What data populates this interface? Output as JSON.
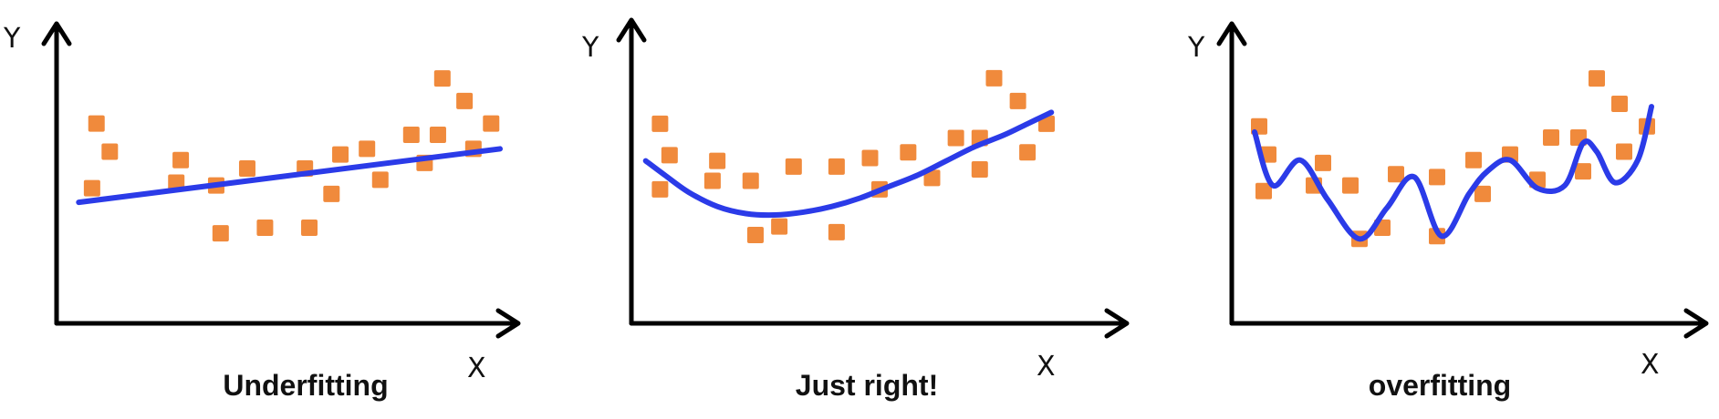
{
  "colors": {
    "points": "#f08a3c",
    "curve": "#2b3be8",
    "axes": "#000000"
  },
  "panels": [
    {
      "y_label": "Y",
      "x_label": "X",
      "caption": "Underfitting",
      "points": [
        [
          0.9,
          7.1
        ],
        [
          1.2,
          6.1
        ],
        [
          0.8,
          4.8
        ],
        [
          2.8,
          5.8
        ],
        [
          2.7,
          5.0
        ],
        [
          3.6,
          4.9
        ],
        [
          4.3,
          5.5
        ],
        [
          3.7,
          3.2
        ],
        [
          4.7,
          3.4
        ],
        [
          5.6,
          5.5
        ],
        [
          5.7,
          3.4
        ],
        [
          6.4,
          6.0
        ],
        [
          6.2,
          4.6
        ],
        [
          7.0,
          6.2
        ],
        [
          7.3,
          5.1
        ],
        [
          8.0,
          6.7
        ],
        [
          8.6,
          6.7
        ],
        [
          8.3,
          5.7
        ],
        [
          8.7,
          8.7
        ],
        [
          9.2,
          7.9
        ],
        [
          9.4,
          6.2
        ],
        [
          9.8,
          7.1
        ]
      ],
      "curve": [
        [
          0.5,
          4.3
        ],
        [
          10.0,
          6.2
        ]
      ]
    },
    {
      "y_label": "Y",
      "x_label": "X",
      "caption": "Just right!",
      "points": [
        [
          0.6,
          7.0
        ],
        [
          0.8,
          5.9
        ],
        [
          0.6,
          4.7
        ],
        [
          1.8,
          5.7
        ],
        [
          1.7,
          5.0
        ],
        [
          2.5,
          5.0
        ],
        [
          2.6,
          3.1
        ],
        [
          3.1,
          3.4
        ],
        [
          3.4,
          5.5
        ],
        [
          4.3,
          5.5
        ],
        [
          4.3,
          3.2
        ],
        [
          5.0,
          5.8
        ],
        [
          5.2,
          4.7
        ],
        [
          5.8,
          6.0
        ],
        [
          6.3,
          5.1
        ],
        [
          6.8,
          6.5
        ],
        [
          7.3,
          6.5
        ],
        [
          7.3,
          5.4
        ],
        [
          7.6,
          8.6
        ],
        [
          8.1,
          7.8
        ],
        [
          8.3,
          6.0
        ],
        [
          8.7,
          7.0
        ]
      ],
      "curve": [
        [
          0.3,
          5.7
        ],
        [
          0.7,
          5.2
        ],
        [
          1.2,
          4.6
        ],
        [
          1.8,
          4.1
        ],
        [
          2.4,
          3.85
        ],
        [
          3.0,
          3.8
        ],
        [
          3.6,
          3.9
        ],
        [
          4.2,
          4.1
        ],
        [
          4.8,
          4.4
        ],
        [
          5.4,
          4.8
        ],
        [
          6.0,
          5.2
        ],
        [
          6.6,
          5.7
        ],
        [
          7.2,
          6.2
        ],
        [
          7.8,
          6.6
        ],
        [
          8.3,
          7.0
        ],
        [
          8.8,
          7.4
        ]
      ]
    },
    {
      "y_label": "Y",
      "x_label": "X",
      "caption": "overfitting",
      "points": [
        [
          0.6,
          7.0
        ],
        [
          0.8,
          6.0
        ],
        [
          0.7,
          4.7
        ],
        [
          2.0,
          5.7
        ],
        [
          1.8,
          4.9
        ],
        [
          2.6,
          4.9
        ],
        [
          2.8,
          3.0
        ],
        [
          3.3,
          3.4
        ],
        [
          3.6,
          5.3
        ],
        [
          4.5,
          5.2
        ],
        [
          4.5,
          3.1
        ],
        [
          5.3,
          5.8
        ],
        [
          5.5,
          4.6
        ],
        [
          6.1,
          6.0
        ],
        [
          6.7,
          5.1
        ],
        [
          7.0,
          6.6
        ],
        [
          7.6,
          6.6
        ],
        [
          7.7,
          5.4
        ],
        [
          8.0,
          8.7
        ],
        [
          8.5,
          7.8
        ],
        [
          8.6,
          6.1
        ],
        [
          9.1,
          7.0
        ]
      ],
      "curve": [
        [
          0.5,
          6.8
        ],
        [
          0.9,
          4.9
        ],
        [
          1.5,
          5.8
        ],
        [
          2.1,
          4.4
        ],
        [
          2.8,
          3.0
        ],
        [
          3.4,
          4.1
        ],
        [
          4.0,
          5.2
        ],
        [
          4.6,
          3.1
        ],
        [
          5.2,
          4.6
        ],
        [
          5.6,
          5.4
        ],
        [
          6.1,
          5.8
        ],
        [
          6.7,
          4.8
        ],
        [
          7.3,
          4.9
        ],
        [
          7.7,
          6.4
        ],
        [
          8.0,
          6.1
        ],
        [
          8.4,
          5.0
        ],
        [
          8.9,
          5.8
        ],
        [
          9.2,
          7.7
        ]
      ]
    }
  ]
}
